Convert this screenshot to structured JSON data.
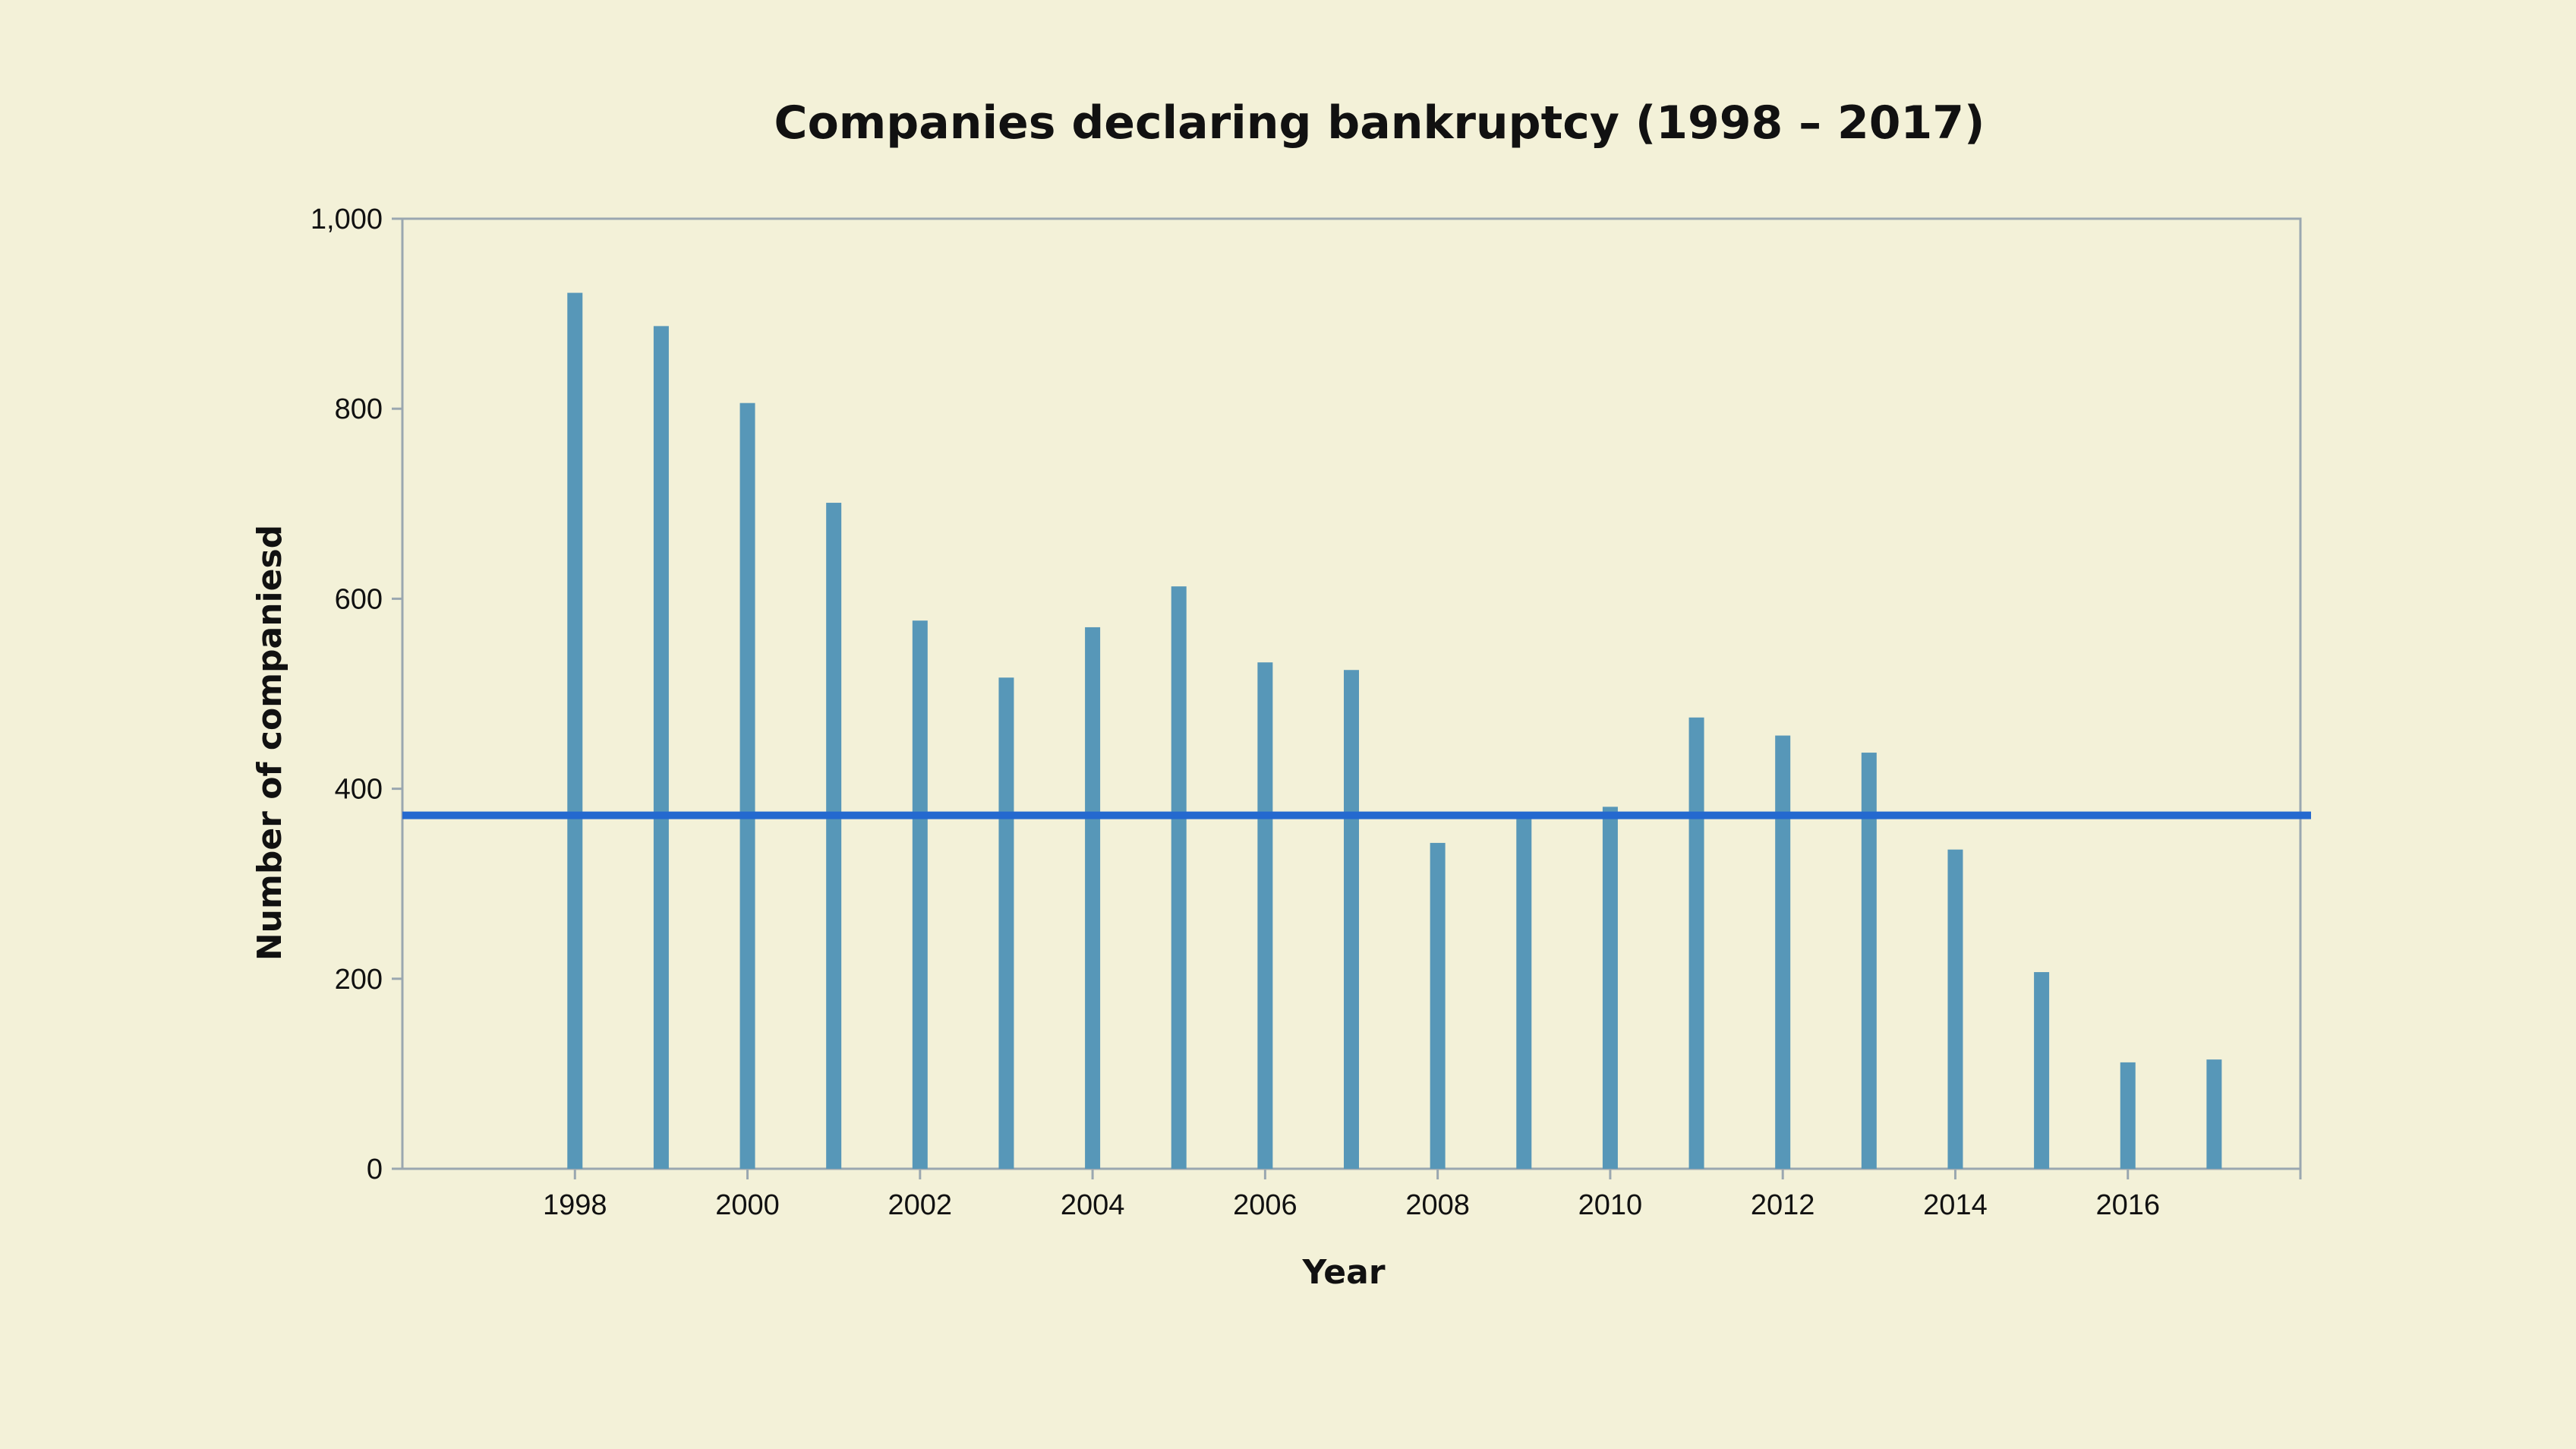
{
  "chart_data": {
    "type": "bar",
    "title": "Companies declaring bankruptcy (1998 – 2017)",
    "xlabel": "Year",
    "ylabel": "Number of companiesd",
    "x": [
      1998,
      1999,
      2000,
      2001,
      2002,
      2003,
      2004,
      2005,
      2006,
      2007,
      2008,
      2009,
      2010,
      2011,
      2012,
      2013,
      2014,
      2015,
      2016,
      2017
    ],
    "values": [
      922,
      887,
      806,
      701,
      577,
      517,
      570,
      613,
      533,
      525,
      343,
      372,
      381,
      475,
      456,
      438,
      336,
      207,
      112,
      115
    ],
    "xlim": [
      1996,
      2018
    ],
    "ylim": [
      0,
      1000
    ],
    "yticks": [
      0,
      200,
      400,
      600,
      800,
      1000
    ],
    "ytick_labels": [
      "0",
      "200",
      "400",
      "600",
      "800",
      "1,000"
    ],
    "xticks": [
      1998,
      2000,
      2002,
      2004,
      2006,
      2008,
      2010,
      2012,
      2014,
      2016
    ],
    "xtick_labels": [
      "1998",
      "2000",
      "2002",
      "2004",
      "2006",
      "2008",
      "2010",
      "2012",
      "2014",
      "2016"
    ],
    "reference_line": {
      "y": 372
    },
    "grid": false,
    "colors": {
      "bar": "#5797b8",
      "reference_line": "#2469cf",
      "axis": "#9aa7b0",
      "background": "#f3f1d8"
    }
  }
}
